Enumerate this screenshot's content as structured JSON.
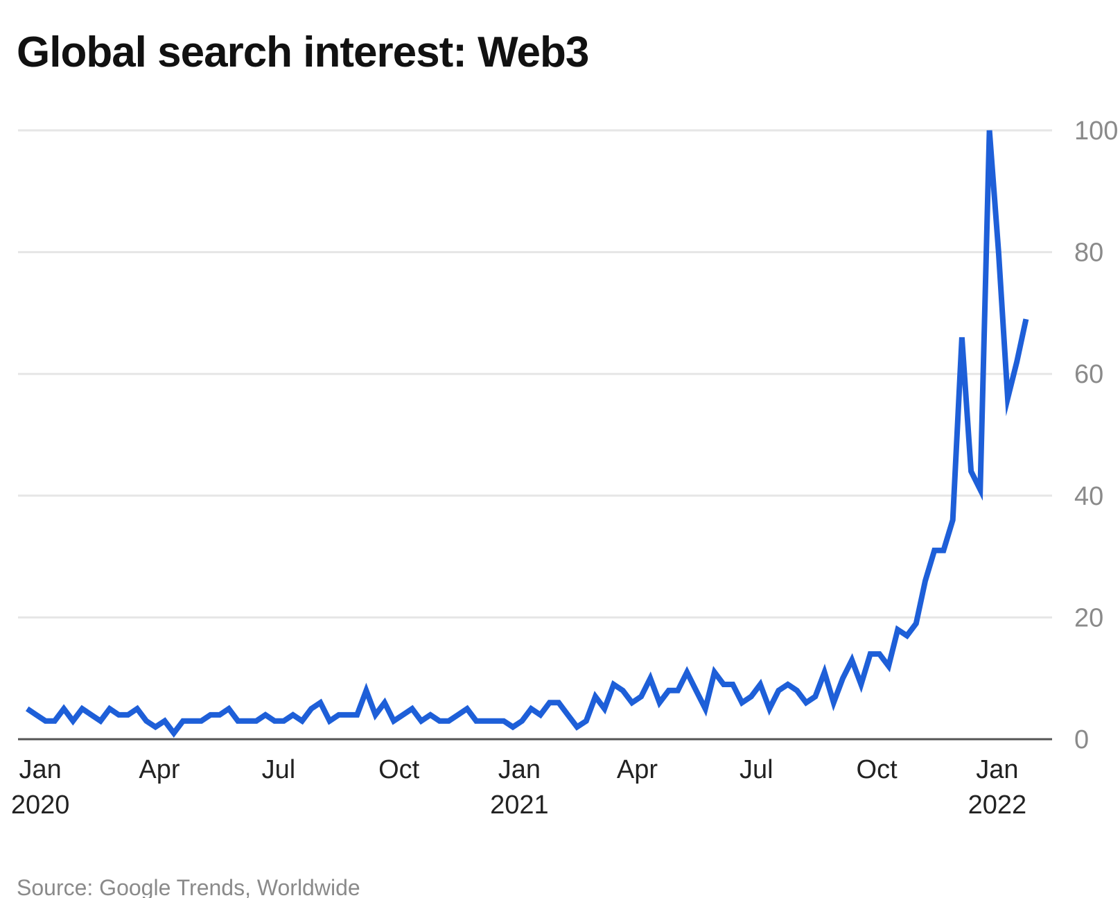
{
  "title": "Global search interest: Web3",
  "source": "Source: Google Trends, Worldwide",
  "colors": {
    "line": "#1e5fd8",
    "grid": "#e6e6e6",
    "baseline": "#555555",
    "tick_text": "#8a8a8a",
    "axis_text": "#222222"
  },
  "chart_data": {
    "type": "line",
    "title": "Global search interest: Web3",
    "xlabel": "",
    "ylabel": "",
    "ylim": [
      0,
      100
    ],
    "y_ticks": [
      0,
      20,
      40,
      60,
      80,
      100
    ],
    "y_axis_side": "right",
    "grid": true,
    "x_ticks": [
      {
        "date": "2020-01-01",
        "label": "Jan",
        "year": "2020"
      },
      {
        "date": "2020-04-01",
        "label": "Apr",
        "year": ""
      },
      {
        "date": "2020-07-01",
        "label": "Jul",
        "year": ""
      },
      {
        "date": "2020-10-01",
        "label": "Oct",
        "year": ""
      },
      {
        "date": "2021-01-01",
        "label": "Jan",
        "year": "2021"
      },
      {
        "date": "2021-04-01",
        "label": "Apr",
        "year": ""
      },
      {
        "date": "2021-07-01",
        "label": "Jul",
        "year": ""
      },
      {
        "date": "2021-10-01",
        "label": "Oct",
        "year": ""
      },
      {
        "date": "2022-01-01",
        "label": "Jan",
        "year": "2022"
      }
    ],
    "series": [
      {
        "values": [
          [
            "2019-12-22",
            5
          ],
          [
            "2019-12-29",
            4
          ],
          [
            "2020-01-05",
            3
          ],
          [
            "2020-01-12",
            3
          ],
          [
            "2020-01-19",
            5
          ],
          [
            "2020-01-26",
            3
          ],
          [
            "2020-02-02",
            5
          ],
          [
            "2020-02-09",
            4
          ],
          [
            "2020-02-16",
            3
          ],
          [
            "2020-02-23",
            5
          ],
          [
            "2020-03-01",
            4
          ],
          [
            "2020-03-08",
            4
          ],
          [
            "2020-03-15",
            5
          ],
          [
            "2020-03-22",
            3
          ],
          [
            "2020-03-29",
            2
          ],
          [
            "2020-04-05",
            3
          ],
          [
            "2020-04-12",
            1
          ],
          [
            "2020-04-19",
            3
          ],
          [
            "2020-04-26",
            3
          ],
          [
            "2020-05-03",
            3
          ],
          [
            "2020-05-10",
            4
          ],
          [
            "2020-05-17",
            4
          ],
          [
            "2020-05-24",
            5
          ],
          [
            "2020-05-31",
            3
          ],
          [
            "2020-06-07",
            3
          ],
          [
            "2020-06-14",
            3
          ],
          [
            "2020-06-21",
            4
          ],
          [
            "2020-06-28",
            3
          ],
          [
            "2020-07-05",
            3
          ],
          [
            "2020-07-12",
            4
          ],
          [
            "2020-07-19",
            3
          ],
          [
            "2020-07-26",
            5
          ],
          [
            "2020-08-02",
            6
          ],
          [
            "2020-08-09",
            3
          ],
          [
            "2020-08-16",
            4
          ],
          [
            "2020-08-23",
            4
          ],
          [
            "2020-08-30",
            4
          ],
          [
            "2020-09-06",
            8
          ],
          [
            "2020-09-13",
            4
          ],
          [
            "2020-09-20",
            6
          ],
          [
            "2020-09-27",
            3
          ],
          [
            "2020-10-04",
            4
          ],
          [
            "2020-10-11",
            5
          ],
          [
            "2020-10-18",
            3
          ],
          [
            "2020-10-25",
            4
          ],
          [
            "2020-11-01",
            3
          ],
          [
            "2020-11-08",
            3
          ],
          [
            "2020-11-15",
            4
          ],
          [
            "2020-11-22",
            5
          ],
          [
            "2020-11-29",
            3
          ],
          [
            "2020-12-06",
            3
          ],
          [
            "2020-12-13",
            3
          ],
          [
            "2020-12-20",
            3
          ],
          [
            "2020-12-27",
            2
          ],
          [
            "2021-01-03",
            3
          ],
          [
            "2021-01-10",
            5
          ],
          [
            "2021-01-17",
            4
          ],
          [
            "2021-01-24",
            6
          ],
          [
            "2021-01-31",
            6
          ],
          [
            "2021-02-07",
            4
          ],
          [
            "2021-02-14",
            2
          ],
          [
            "2021-02-21",
            3
          ],
          [
            "2021-02-28",
            7
          ],
          [
            "2021-03-07",
            5
          ],
          [
            "2021-03-14",
            9
          ],
          [
            "2021-03-21",
            8
          ],
          [
            "2021-03-28",
            6
          ],
          [
            "2021-04-04",
            7
          ],
          [
            "2021-04-11",
            10
          ],
          [
            "2021-04-18",
            6
          ],
          [
            "2021-04-25",
            8
          ],
          [
            "2021-05-02",
            8
          ],
          [
            "2021-05-09",
            11
          ],
          [
            "2021-05-16",
            8
          ],
          [
            "2021-05-23",
            5
          ],
          [
            "2021-05-30",
            11
          ],
          [
            "2021-06-06",
            9
          ],
          [
            "2021-06-13",
            9
          ],
          [
            "2021-06-20",
            6
          ],
          [
            "2021-06-27",
            7
          ],
          [
            "2021-07-04",
            9
          ],
          [
            "2021-07-11",
            5
          ],
          [
            "2021-07-18",
            8
          ],
          [
            "2021-07-25",
            9
          ],
          [
            "2021-08-01",
            8
          ],
          [
            "2021-08-08",
            6
          ],
          [
            "2021-08-15",
            7
          ],
          [
            "2021-08-22",
            11
          ],
          [
            "2021-08-29",
            6
          ],
          [
            "2021-09-05",
            10
          ],
          [
            "2021-09-12",
            13
          ],
          [
            "2021-09-19",
            9
          ],
          [
            "2021-09-26",
            14
          ],
          [
            "2021-10-03",
            14
          ],
          [
            "2021-10-10",
            12
          ],
          [
            "2021-10-17",
            18
          ],
          [
            "2021-10-24",
            17
          ],
          [
            "2021-10-31",
            19
          ],
          [
            "2021-11-07",
            26
          ],
          [
            "2021-11-14",
            31
          ],
          [
            "2021-11-21",
            31
          ],
          [
            "2021-11-28",
            36
          ],
          [
            "2021-12-05",
            66
          ],
          [
            "2021-12-12",
            44
          ],
          [
            "2021-12-19",
            41
          ],
          [
            "2021-12-26",
            100
          ],
          [
            "2022-01-02",
            80
          ],
          [
            "2022-01-09",
            56
          ],
          [
            "2022-01-16",
            62
          ],
          [
            "2022-01-23",
            69
          ]
        ]
      }
    ]
  }
}
